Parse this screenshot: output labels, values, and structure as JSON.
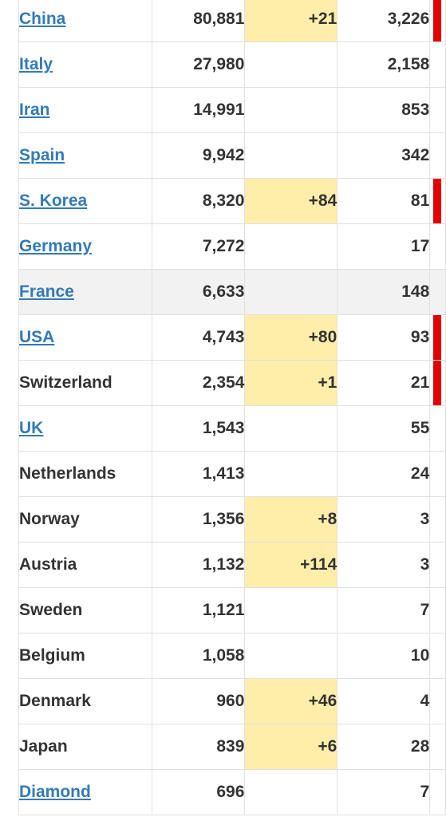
{
  "table": {
    "rows": [
      {
        "country": "China",
        "link": true,
        "cases": "80,881",
        "new_cases": "+21",
        "deaths": "3,226",
        "red": true
      },
      {
        "country": "Italy",
        "link": true,
        "cases": "27,980",
        "new_cases": "",
        "deaths": "2,158",
        "red": false
      },
      {
        "country": "Iran",
        "link": true,
        "cases": "14,991",
        "new_cases": "",
        "deaths": "853",
        "red": false
      },
      {
        "country": "Spain",
        "link": true,
        "cases": "9,942",
        "new_cases": "",
        "deaths": "342",
        "red": false
      },
      {
        "country": "S. Korea",
        "link": true,
        "cases": "8,320",
        "new_cases": "+84",
        "deaths": "81",
        "red": true
      },
      {
        "country": "Germany",
        "link": true,
        "cases": "7,272",
        "new_cases": "",
        "deaths": "17",
        "red": false
      },
      {
        "country": "France",
        "link": true,
        "cases": "6,633",
        "new_cases": "",
        "deaths": "148",
        "red": false,
        "shaded": true
      },
      {
        "country": "USA",
        "link": true,
        "cases": "4,743",
        "new_cases": "+80",
        "deaths": "93",
        "red": true
      },
      {
        "country": "Switzerland",
        "link": false,
        "cases": "2,354",
        "new_cases": "+1",
        "deaths": "21",
        "red": true
      },
      {
        "country": "UK",
        "link": true,
        "cases": "1,543",
        "new_cases": "",
        "deaths": "55",
        "red": false
      },
      {
        "country": "Netherlands",
        "link": false,
        "cases": "1,413",
        "new_cases": "",
        "deaths": "24",
        "red": false
      },
      {
        "country": "Norway",
        "link": false,
        "cases": "1,356",
        "new_cases": "+8",
        "deaths": "3",
        "red": false
      },
      {
        "country": "Austria",
        "link": false,
        "cases": "1,132",
        "new_cases": "+114",
        "deaths": "3",
        "red": false
      },
      {
        "country": "Sweden",
        "link": false,
        "cases": "1,121",
        "new_cases": "",
        "deaths": "7",
        "red": false
      },
      {
        "country": "Belgium",
        "link": false,
        "cases": "1,058",
        "new_cases": "",
        "deaths": "10",
        "red": false
      },
      {
        "country": "Denmark",
        "link": false,
        "cases": "960",
        "new_cases": "+46",
        "deaths": "4",
        "red": false
      },
      {
        "country": "Japan",
        "link": false,
        "cases": "839",
        "new_cases": "+6",
        "deaths": "28",
        "red": false
      },
      {
        "country": "Diamond",
        "link": true,
        "cases": "696",
        "new_cases": "",
        "deaths": "7",
        "red": false
      }
    ]
  },
  "colors": {
    "link": "#337ab7",
    "new_cases_highlight": "#feeeaa",
    "new_deaths_bar": "#e50000",
    "shaded_row": "#f2f2f2"
  }
}
